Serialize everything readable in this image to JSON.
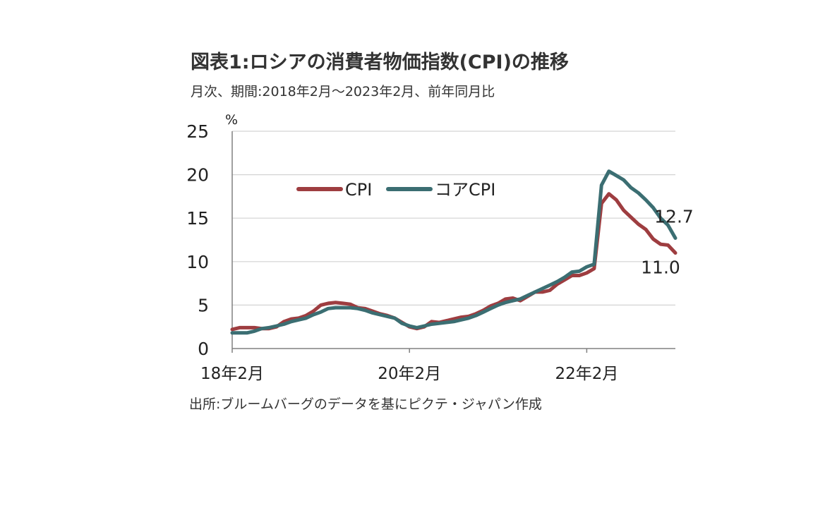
{
  "title": "図表1:ロシアの消費者物価指数(CPI)の推移",
  "subtitle": "月次、期間:2018年2月～2023年2月、前年同月比",
  "source": "出所:ブルームバーグのデータを基にピクテ・ジャパン作成",
  "chart_data": {
    "type": "line",
    "unit_label": "%",
    "ylim": [
      0,
      25
    ],
    "yticks": [
      0,
      5,
      10,
      15,
      20,
      25
    ],
    "xlim": [
      0,
      60
    ],
    "xtick_positions": [
      0,
      24,
      48
    ],
    "xtick_labels": [
      "18年2月",
      "20年2月",
      "22年2月"
    ],
    "grid": true,
    "legend_position": "top-center",
    "series": [
      {
        "name": "CPI",
        "color": "#9e3d40",
        "values": [
          2.2,
          2.4,
          2.4,
          2.4,
          2.3,
          2.3,
          2.5,
          3.1,
          3.4,
          3.5,
          3.8,
          4.3,
          5.0,
          5.2,
          5.3,
          5.2,
          5.1,
          4.7,
          4.6,
          4.3,
          4.0,
          3.8,
          3.5,
          3.0,
          2.5,
          2.3,
          2.5,
          3.1,
          3.0,
          3.2,
          3.4,
          3.6,
          3.7,
          4.0,
          4.4,
          4.9,
          5.2,
          5.7,
          5.8,
          5.5,
          6.0,
          6.5,
          6.5,
          6.7,
          7.4,
          7.9,
          8.4,
          8.4,
          8.7,
          9.2,
          16.7,
          17.8,
          17.1,
          15.9,
          15.1,
          14.3,
          13.7,
          12.6,
          12.0,
          11.9,
          11.0
        ],
        "end_label": "11.0"
      },
      {
        "name": "コアCPI",
        "color": "#3b6e72",
        "values": [
          1.8,
          1.8,
          1.8,
          2.0,
          2.3,
          2.4,
          2.6,
          2.8,
          3.1,
          3.3,
          3.5,
          3.9,
          4.2,
          4.6,
          4.7,
          4.7,
          4.7,
          4.6,
          4.4,
          4.1,
          3.9,
          3.7,
          3.5,
          2.9,
          2.6,
          2.4,
          2.6,
          2.8,
          2.9,
          3.0,
          3.1,
          3.3,
          3.5,
          3.8,
          4.2,
          4.6,
          5.0,
          5.3,
          5.5,
          5.7,
          6.1,
          6.5,
          6.9,
          7.3,
          7.7,
          8.2,
          8.8,
          8.9,
          9.4,
          9.7,
          18.8,
          20.4,
          19.9,
          19.4,
          18.5,
          17.9,
          17.1,
          16.2,
          15.0,
          14.2,
          12.7
        ],
        "end_label": "12.7"
      }
    ]
  }
}
